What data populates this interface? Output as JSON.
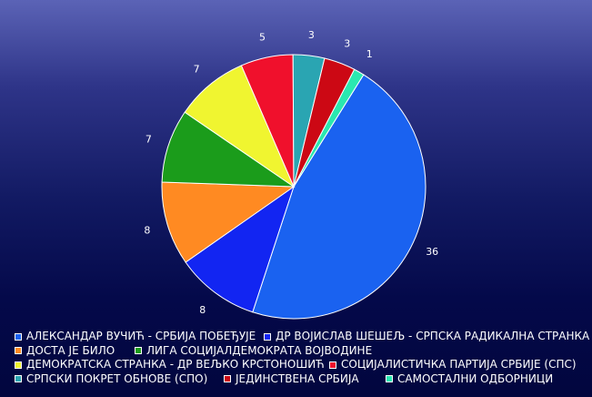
{
  "chart_data": {
    "type": "pie",
    "title": "",
    "categories": [
      "АЛЕКСАНДАР ВУЧИЋ - СРБИЈА ПОБЕЂУЈЕ",
      "ДР ВОЈИСЛАВ ШЕШЕЉ - СРПСКА РАДИКАЛНА СТРАНКА",
      "ДОСТА ЈЕ БИЛО",
      "ЛИГА СОЦИЈАЛДЕМОКРАТА ВОЈВОДИНЕ",
      "ДЕМОКРАТСКА СТРАНКА - ДР ВЕЉКО КРСТОНОШИЋ",
      "СОЦИЈАЛИСТИЧКА ПАРТИЈА СРБИЈЕ (СПС)",
      "СРПСКИ ПОКРЕТ ОБНОВЕ (СПО)",
      "ЈЕДИНСТВЕНА СРБИЈА",
      "САМОСТАЛНИ ОДБОРНИЦИ"
    ],
    "values": [
      36,
      8,
      8,
      7,
      7,
      5,
      3,
      3,
      1
    ],
    "colors": [
      "#1a62f0",
      "#1225f2",
      "#ff8a22",
      "#1b9c1b",
      "#f0f530",
      "#f0102c",
      "#2aa5b2",
      "#cc0814",
      "#2ae8b0"
    ],
    "legend_position": "bottom"
  },
  "legend_rows": [
    [
      0,
      1
    ],
    [
      2,
      3
    ],
    [
      4,
      5
    ],
    [
      6,
      7,
      8
    ]
  ]
}
